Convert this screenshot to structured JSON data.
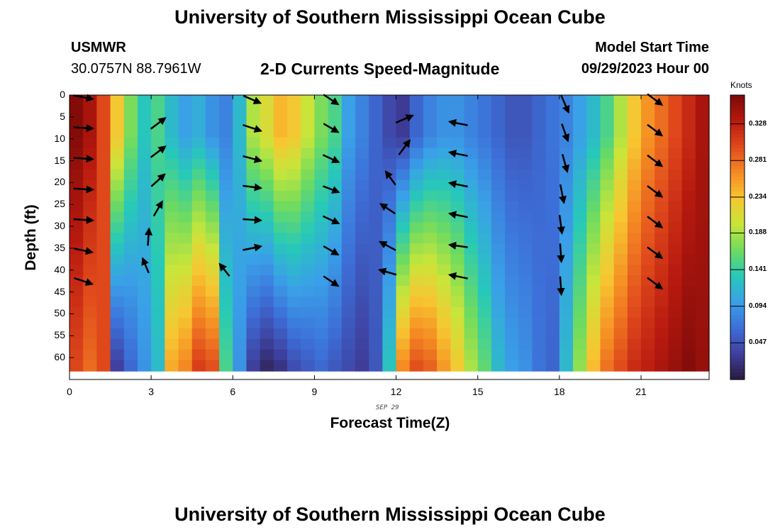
{
  "header": {
    "title": "University of Southern Mississippi Ocean Cube",
    "station": "USMWR",
    "coords": "30.0757N  88.7961W",
    "plot_title": "2-D Currents Speed-Magnitude",
    "model_start_label": "Model Start Time",
    "model_start_value": "09/29/2023 Hour 00",
    "footer_title": "University of Southern Mississippi Ocean Cube"
  },
  "chart_data": {
    "type": "heatmap",
    "title": "2-D Currents Speed-Magnitude",
    "xlabel": "Forecast Time(Z)",
    "ylabel": "Depth (ft)",
    "date_label": "SEP 29",
    "xlim": [
      0,
      23.5
    ],
    "ylim": [
      65,
      0
    ],
    "x_ticks": [
      0,
      3,
      6,
      9,
      12,
      15,
      18,
      21
    ],
    "y_ticks": [
      0,
      5,
      10,
      15,
      20,
      25,
      30,
      35,
      40,
      45,
      50,
      55,
      60
    ],
    "colorbar": {
      "units": "Knots",
      "ticks": [
        0.328,
        0.281,
        0.234,
        0.188,
        0.141,
        0.094,
        0.047
      ],
      "range": [
        0.0,
        0.365
      ],
      "colormap": [
        "#2a1a3f",
        "#3f3f9e",
        "#3d6fd8",
        "#3aa0e8",
        "#27c9b8",
        "#6fdb5f",
        "#c9e53a",
        "#f7c631",
        "#f58a23",
        "#e04a1c",
        "#b8190f",
        "#7a0a08"
      ]
    },
    "hours": [
      0,
      0.5,
      1,
      1.5,
      2,
      2.5,
      3,
      3.5,
      4,
      4.5,
      5,
      5.5,
      6,
      6.5,
      7,
      7.5,
      8,
      8.5,
      9,
      9.5,
      10,
      10.5,
      11,
      11.5,
      12,
      12.5,
      13,
      13.5,
      14,
      14.5,
      15,
      15.5,
      16,
      16.5,
      17,
      17.5,
      18,
      18.5,
      19,
      19.5,
      20,
      20.5,
      21,
      21.5,
      22,
      22.5,
      23
    ],
    "depths": [
      0,
      63
    ],
    "speed_top": [
      0.36,
      0.34,
      0.3,
      0.23,
      0.17,
      0.13,
      0.15,
      0.12,
      0.1,
      0.11,
      0.09,
      0.08,
      0.12,
      0.19,
      0.21,
      0.24,
      0.23,
      0.2,
      0.17,
      0.15,
      0.1,
      0.08,
      0.06,
      0.04,
      0.03,
      0.06,
      0.08,
      0.09,
      0.09,
      0.08,
      0.07,
      0.06,
      0.05,
      0.05,
      0.06,
      0.07,
      0.08,
      0.1,
      0.12,
      0.15,
      0.19,
      0.23,
      0.26,
      0.28,
      0.3,
      0.32,
      0.34
    ],
    "speed_bottom": [
      0.3,
      0.28,
      0.3,
      0.03,
      0.06,
      0.09,
      0.12,
      0.25,
      0.27,
      0.31,
      0.3,
      0.15,
      0.09,
      0.03,
      0.01,
      0.02,
      0.04,
      0.05,
      0.06,
      0.05,
      0.04,
      0.03,
      0.05,
      0.13,
      0.27,
      0.3,
      0.29,
      0.26,
      0.23,
      0.19,
      0.16,
      0.12,
      0.1,
      0.09,
      0.07,
      0.06,
      0.12,
      0.18,
      0.24,
      0.28,
      0.3,
      0.32,
      0.33,
      0.34,
      0.35,
      0.36,
      0.35
    ],
    "vectors": [
      {
        "t": 0.5,
        "d": 0.5,
        "u": 0.8,
        "v": -0.15
      },
      {
        "t": 0.5,
        "d": 7.5,
        "u": 0.8,
        "v": -0.05
      },
      {
        "t": 0.5,
        "d": 14.5,
        "u": 0.8,
        "v": -0.05
      },
      {
        "t": 0.5,
        "d": 21.5,
        "u": 0.8,
        "v": -0.05
      },
      {
        "t": 0.5,
        "d": 28.5,
        "u": 0.8,
        "v": -0.05
      },
      {
        "t": 0.5,
        "d": 35.5,
        "u": 0.75,
        "v": -0.15
      },
      {
        "t": 0.5,
        "d": 42.5,
        "u": 0.75,
        "v": -0.25
      },
      {
        "t": 3.25,
        "d": 6.5,
        "u": 0.6,
        "v": 0.45
      },
      {
        "t": 3.25,
        "d": 13,
        "u": 0.6,
        "v": 0.45
      },
      {
        "t": 3.25,
        "d": 19.5,
        "u": 0.55,
        "v": 0.5
      },
      {
        "t": 3.25,
        "d": 26,
        "u": 0.35,
        "v": 0.6
      },
      {
        "t": 2.9,
        "d": 32.5,
        "u": 0.05,
        "v": 0.7
      },
      {
        "t": 2.8,
        "d": 39,
        "u": -0.25,
        "v": 0.6
      },
      {
        "t": 6.7,
        "d": 1,
        "u": 0.7,
        "v": -0.3
      },
      {
        "t": 6.7,
        "d": 7.5,
        "u": 0.75,
        "v": -0.25
      },
      {
        "t": 6.7,
        "d": 14.5,
        "u": 0.75,
        "v": -0.2
      },
      {
        "t": 6.7,
        "d": 21,
        "u": 0.75,
        "v": -0.1
      },
      {
        "t": 6.7,
        "d": 28.5,
        "u": 0.75,
        "v": -0.05
      },
      {
        "t": 6.7,
        "d": 35,
        "u": 0.75,
        "v": 0.15
      },
      {
        "t": 5.7,
        "d": 40,
        "u": -0.4,
        "v": 0.5
      },
      {
        "t": 9.6,
        "d": 1,
        "u": 0.6,
        "v": -0.4
      },
      {
        "t": 9.6,
        "d": 7.5,
        "u": 0.6,
        "v": -0.35
      },
      {
        "t": 9.6,
        "d": 14.5,
        "u": 0.65,
        "v": -0.3
      },
      {
        "t": 9.6,
        "d": 21.5,
        "u": 0.65,
        "v": -0.25
      },
      {
        "t": 9.6,
        "d": 28.5,
        "u": 0.65,
        "v": -0.3
      },
      {
        "t": 9.6,
        "d": 35.5,
        "u": 0.6,
        "v": -0.35
      },
      {
        "t": 9.6,
        "d": 42.5,
        "u": 0.6,
        "v": -0.4
      },
      {
        "t": 12.3,
        "d": 5.5,
        "u": 0.7,
        "v": 0.3
      },
      {
        "t": 12.3,
        "d": 12,
        "u": 0.45,
        "v": 0.6
      },
      {
        "t": 11.8,
        "d": 19,
        "u": -0.4,
        "v": 0.55
      },
      {
        "t": 11.7,
        "d": 26,
        "u": -0.6,
        "v": 0.4
      },
      {
        "t": 11.7,
        "d": 34.5,
        "u": -0.65,
        "v": 0.35
      },
      {
        "t": 11.7,
        "d": 40.5,
        "u": -0.7,
        "v": 0.2
      },
      {
        "t": 14.3,
        "d": 6.5,
        "u": -0.75,
        "v": 0.15
      },
      {
        "t": 14.3,
        "d": 13.5,
        "u": -0.75,
        "v": 0.15
      },
      {
        "t": 14.3,
        "d": 20.5,
        "u": -0.75,
        "v": 0.15
      },
      {
        "t": 14.3,
        "d": 27.5,
        "u": -0.75,
        "v": 0.15
      },
      {
        "t": 14.3,
        "d": 34.5,
        "u": -0.75,
        "v": 0.1
      },
      {
        "t": 14.3,
        "d": 41.5,
        "u": -0.75,
        "v": 0.15
      },
      {
        "t": 18.2,
        "d": 2,
        "u": 0.3,
        "v": -0.7
      },
      {
        "t": 18.2,
        "d": 8.5,
        "u": 0.25,
        "v": -0.7
      },
      {
        "t": 18.2,
        "d": 15.5,
        "u": 0.2,
        "v": -0.72
      },
      {
        "t": 18.1,
        "d": 22.5,
        "u": 0.15,
        "v": -0.75
      },
      {
        "t": 18.05,
        "d": 29.5,
        "u": 0.1,
        "v": -0.75
      },
      {
        "t": 18.05,
        "d": 36,
        "u": 0.05,
        "v": -0.75
      },
      {
        "t": 18.05,
        "d": 43.5,
        "u": 0.05,
        "v": -0.75
      },
      {
        "t": 21.5,
        "d": 1,
        "u": 0.6,
        "v": -0.45
      },
      {
        "t": 21.5,
        "d": 8,
        "u": 0.6,
        "v": -0.45
      },
      {
        "t": 21.5,
        "d": 15,
        "u": 0.6,
        "v": -0.45
      },
      {
        "t": 21.5,
        "d": 22,
        "u": 0.6,
        "v": -0.45
      },
      {
        "t": 21.5,
        "d": 29,
        "u": 0.6,
        "v": -0.45
      },
      {
        "t": 21.5,
        "d": 36,
        "u": 0.6,
        "v": -0.45
      },
      {
        "t": 21.5,
        "d": 43,
        "u": 0.6,
        "v": -0.45
      }
    ]
  }
}
